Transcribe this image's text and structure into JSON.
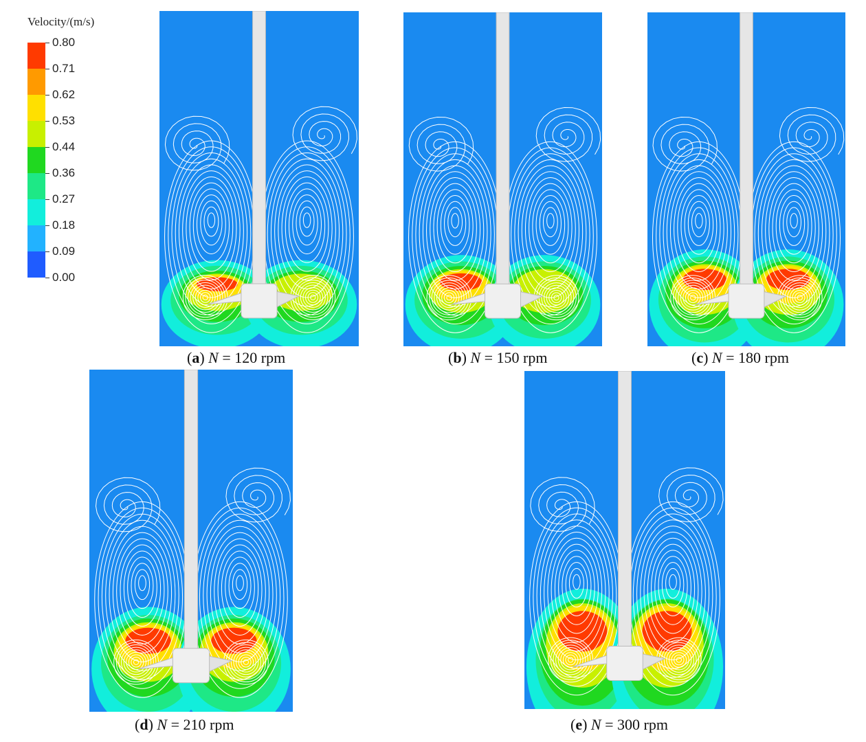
{
  "legend": {
    "title": "Velocity/(m/s)",
    "ticks": [
      "0.80",
      "0.71",
      "0.62",
      "0.53",
      "0.44",
      "0.36",
      "0.27",
      "0.18",
      "0.09",
      "0.00"
    ],
    "colors": [
      "#ff3a00",
      "#ff9a00",
      "#ffe000",
      "#c8f000",
      "#20d820",
      "#1ee886",
      "#12eedc",
      "#22b2ff",
      "#1f5cff"
    ]
  },
  "panels": [
    {
      "letter": "a",
      "var": "N",
      "eq": " = ",
      "value": "120 rpm",
      "speed_rpm": 120
    },
    {
      "letter": "b",
      "var": "N",
      "eq": " = ",
      "value": "150 rpm",
      "speed_rpm": 150
    },
    {
      "letter": "c",
      "var": "N",
      "eq": " = ",
      "value": "180 rpm",
      "speed_rpm": 180
    },
    {
      "letter": "d",
      "var": "N",
      "eq": " = ",
      "value": "210 rpm",
      "speed_rpm": 210
    },
    {
      "letter": "e",
      "var": "N",
      "eq": " = ",
      "value": "300 rpm",
      "speed_rpm": 300
    }
  ],
  "colors": {
    "background_fluid": "#1a8af0",
    "shaft": "#e6e6e6",
    "streamline": "#ffffff"
  }
}
